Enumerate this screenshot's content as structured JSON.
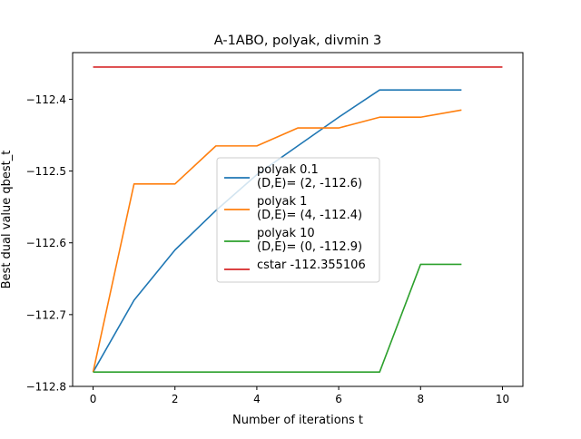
{
  "chart_data": {
    "type": "line",
    "title": "A-1ABO, polyak, divmin 3",
    "xlabel": "Number of iterations t",
    "ylabel": "Best dual value qbest_t",
    "xlim": [
      -0.5,
      10.5
    ],
    "ylim": [
      -112.8,
      -112.335
    ],
    "xticks": [
      0,
      2,
      4,
      6,
      8,
      10
    ],
    "xtick_labels": [
      "0",
      "2",
      "4",
      "6",
      "8",
      "10"
    ],
    "yticks": [
      -112.8,
      -112.7,
      -112.6,
      -112.5,
      -112.4
    ],
    "ytick_labels": [
      "−112.8",
      "−112.7",
      "−112.6",
      "−112.5",
      "−112.4"
    ],
    "grid": false,
    "legend_position": "center",
    "series": [
      {
        "name": "polyak 0.1",
        "name_line2": "(D,E)= (2, -112.6)",
        "color": "#1f77b4",
        "x": [
          0,
          1,
          2,
          3,
          4,
          5,
          6,
          7,
          8,
          9
        ],
        "y": [
          -112.78,
          -112.68,
          -112.61,
          -112.555,
          -112.505,
          -112.465,
          -112.425,
          -112.387,
          -112.387,
          -112.387
        ]
      },
      {
        "name": "polyak 1",
        "name_line2": "(D,E)= (4, -112.4)",
        "color": "#ff7f0e",
        "x": [
          0,
          1,
          2,
          3,
          4,
          5,
          6,
          7,
          8,
          9
        ],
        "y": [
          -112.78,
          -112.518,
          -112.518,
          -112.465,
          -112.465,
          -112.44,
          -112.44,
          -112.425,
          -112.425,
          -112.415
        ]
      },
      {
        "name": "polyak 10",
        "name_line2": "(D,E)= (0, -112.9)",
        "color": "#2ca02c",
        "x": [
          0,
          1,
          2,
          3,
          4,
          5,
          6,
          7,
          8,
          9
        ],
        "y": [
          -112.78,
          -112.78,
          -112.78,
          -112.78,
          -112.78,
          -112.78,
          -112.78,
          -112.78,
          -112.63,
          -112.63
        ]
      },
      {
        "name": "cstar -112.355106",
        "name_line2": "",
        "color": "#d62728",
        "x": [
          0,
          10
        ],
        "y": [
          -112.355106,
          -112.355106
        ]
      }
    ]
  }
}
